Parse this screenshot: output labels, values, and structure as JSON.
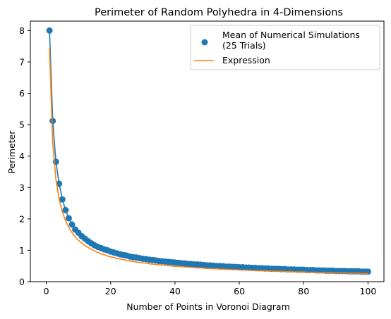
{
  "chart_data": {
    "type": "line",
    "title": "Perimeter of Random Polyhedra in 4-Dimensions",
    "xlabel": "Number of Points in Voronoi Diagram",
    "ylabel": "Perimeter",
    "xlim": [
      -4.95,
      104.95
    ],
    "ylim": [
      0,
      8.3
    ],
    "xticks": [
      0,
      20,
      40,
      60,
      80,
      100
    ],
    "yticks": [
      0,
      1,
      2,
      3,
      4,
      5,
      6,
      7,
      8
    ],
    "grid": false,
    "legend_position": "top-right",
    "series": [
      {
        "name": "Mean of Numerical Simulations\n(25 Trials)",
        "kind": "line+markers",
        "color": "#1f77b4",
        "x": [
          1,
          2,
          3,
          4,
          5,
          6,
          7,
          8,
          9,
          10,
          11,
          12,
          13,
          14,
          15,
          16,
          17,
          18,
          19,
          20,
          21,
          22,
          23,
          24,
          25,
          26,
          27,
          28,
          29,
          30,
          31,
          32,
          33,
          34,
          35,
          36,
          37,
          38,
          39,
          40,
          41,
          42,
          43,
          44,
          45,
          46,
          47,
          48,
          49,
          50,
          51,
          52,
          53,
          54,
          55,
          56,
          57,
          58,
          59,
          60,
          61,
          62,
          63,
          64,
          65,
          66,
          67,
          68,
          69,
          70,
          71,
          72,
          73,
          74,
          75,
          76,
          77,
          78,
          79,
          80,
          81,
          82,
          83,
          84,
          85,
          86,
          87,
          88,
          89,
          90,
          91,
          92,
          93,
          94,
          95,
          96,
          97,
          98,
          99,
          100
        ],
        "y": [
          8.0,
          5.12,
          3.82,
          3.12,
          2.62,
          2.28,
          2.02,
          1.82,
          1.66,
          1.56,
          1.45,
          1.37,
          1.29,
          1.22,
          1.16,
          1.11,
          1.07,
          1.03,
          1.0,
          0.96,
          0.93,
          0.9,
          0.87,
          0.85,
          0.83,
          0.8,
          0.78,
          0.77,
          0.75,
          0.73,
          0.72,
          0.7,
          0.69,
          0.68,
          0.66,
          0.65,
          0.64,
          0.63,
          0.62,
          0.61,
          0.6,
          0.59,
          0.58,
          0.57,
          0.56,
          0.55,
          0.55,
          0.54,
          0.53,
          0.52,
          0.52,
          0.51,
          0.5,
          0.5,
          0.49,
          0.48,
          0.48,
          0.47,
          0.47,
          0.46,
          0.46,
          0.45,
          0.45,
          0.44,
          0.44,
          0.43,
          0.43,
          0.42,
          0.42,
          0.41,
          0.41,
          0.41,
          0.4,
          0.4,
          0.39,
          0.39,
          0.39,
          0.38,
          0.38,
          0.38,
          0.37,
          0.37,
          0.37,
          0.36,
          0.36,
          0.36,
          0.35,
          0.35,
          0.35,
          0.34,
          0.34,
          0.34,
          0.34,
          0.33,
          0.33,
          0.33,
          0.33,
          0.32,
          0.32,
          0.32
        ]
      },
      {
        "name": "Expression",
        "kind": "line",
        "color": "#ff7f0e",
        "x": [
          1,
          2,
          3,
          4,
          5,
          6,
          7,
          8,
          9,
          10,
          11,
          12,
          13,
          14,
          15,
          16,
          17,
          18,
          19,
          20,
          21,
          22,
          23,
          24,
          25,
          26,
          27,
          28,
          29,
          30,
          31,
          32,
          33,
          34,
          35,
          36,
          37,
          38,
          39,
          40,
          41,
          42,
          43,
          44,
          45,
          46,
          47,
          48,
          49,
          50,
          51,
          52,
          53,
          54,
          55,
          56,
          57,
          58,
          59,
          60,
          61,
          62,
          63,
          64,
          65,
          66,
          67,
          68,
          69,
          70,
          71,
          72,
          73,
          74,
          75,
          76,
          77,
          78,
          79,
          80,
          81,
          82,
          83,
          84,
          85,
          86,
          87,
          88,
          89,
          90,
          91,
          92,
          93,
          94,
          95,
          96,
          97,
          98,
          99,
          100
        ],
        "y": [
          7.45,
          4.42,
          3.26,
          2.63,
          2.22,
          1.94,
          1.73,
          1.56,
          1.43,
          1.32,
          1.23,
          1.15,
          1.09,
          1.03,
          0.98,
          0.93,
          0.89,
          0.86,
          0.82,
          0.79,
          0.77,
          0.74,
          0.72,
          0.7,
          0.68,
          0.66,
          0.64,
          0.63,
          0.61,
          0.6,
          0.59,
          0.57,
          0.56,
          0.55,
          0.54,
          0.53,
          0.52,
          0.51,
          0.5,
          0.49,
          0.49,
          0.48,
          0.47,
          0.46,
          0.46,
          0.45,
          0.44,
          0.44,
          0.43,
          0.42,
          0.42,
          0.41,
          0.41,
          0.4,
          0.4,
          0.39,
          0.39,
          0.38,
          0.38,
          0.37,
          0.37,
          0.37,
          0.36,
          0.36,
          0.35,
          0.35,
          0.35,
          0.34,
          0.34,
          0.34,
          0.33,
          0.33,
          0.33,
          0.32,
          0.32,
          0.32,
          0.31,
          0.31,
          0.31,
          0.31,
          0.3,
          0.3,
          0.3,
          0.3,
          0.29,
          0.29,
          0.29,
          0.29,
          0.28,
          0.28,
          0.28,
          0.28,
          0.28,
          0.27,
          0.27,
          0.27,
          0.27,
          0.26,
          0.26,
          0.26
        ]
      }
    ]
  }
}
